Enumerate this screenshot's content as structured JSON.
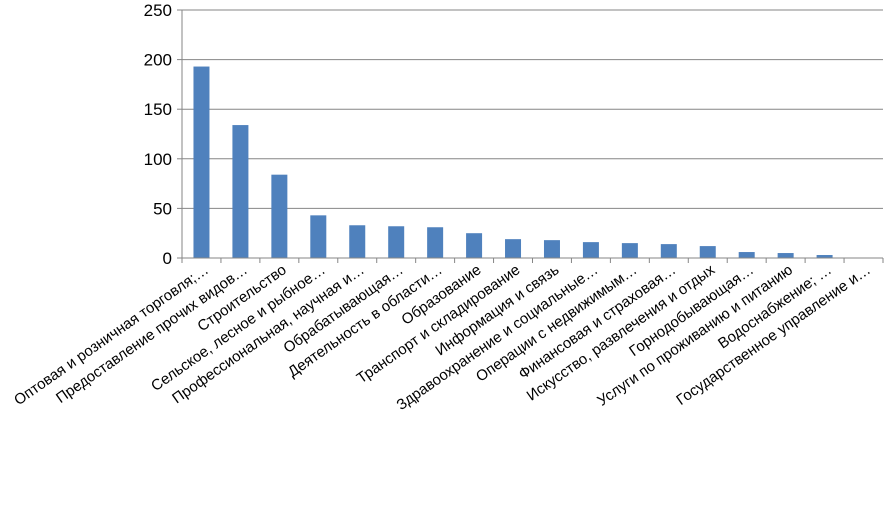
{
  "chart_data": {
    "type": "bar",
    "title": "",
    "xlabel": "",
    "ylabel": "",
    "ylim": [
      0,
      250
    ],
    "yticks": [
      0,
      50,
      100,
      150,
      200,
      250
    ],
    "grid": true,
    "legend": "none",
    "bar_color": "#4f81bd",
    "categories": [
      "Оптовая и розничная торговля;…",
      "Предоставление прочих видов…",
      "Строительство",
      "Сельское, лесное и рыбное…",
      "Профессиональная, научная и…",
      "Обрабатывающая…",
      "Деятельность в области…",
      "Образование",
      "Транспорт и складирование",
      "Информация и связь",
      "Здравоохранение и социальные…",
      "Операции с недвижимым…",
      "Финансовая и страховая…",
      "Искусство, развлечения и отдых",
      "Горнодобывающая…",
      "Услуги по проживанию и питанию",
      "Водоснабжение; …",
      "Государственное управление и…"
    ],
    "values": [
      193,
      134,
      84,
      43,
      33,
      32,
      31,
      25,
      19,
      18,
      16,
      15,
      14,
      12,
      6,
      5,
      3,
      0
    ]
  }
}
